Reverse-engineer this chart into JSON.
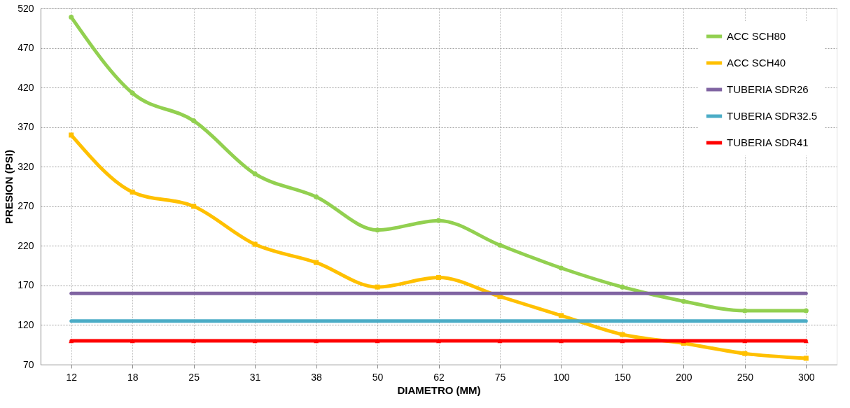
{
  "chart_data": {
    "type": "line",
    "xlabel": "DIAMETRO (MM)",
    "ylabel": "PRESION (PSI)",
    "categories": [
      "12",
      "18",
      "25",
      "31",
      "38",
      "50",
      "62",
      "75",
      "100",
      "150",
      "200",
      "250",
      "300"
    ],
    "ylim": [
      70,
      520
    ],
    "yticks": [
      70,
      120,
      170,
      220,
      270,
      320,
      370,
      420,
      470,
      520
    ],
    "grid": true,
    "legend": "top right",
    "series": [
      {
        "name": "ACC SCH80",
        "color": "#92d050",
        "marker": "circle",
        "values": [
          509,
          413,
          378,
          311,
          282,
          240,
          252,
          221,
          192,
          168,
          150,
          138,
          138
        ]
      },
      {
        "name": "ACC SCH40",
        "color": "#ffc000",
        "marker": "square",
        "values": [
          360,
          288,
          270,
          222,
          199,
          168,
          180,
          156,
          132,
          108,
          97,
          84,
          78
        ]
      },
      {
        "name": "TUBERIA SDR26",
        "color": "#8064a2",
        "marker": "none",
        "values": [
          160,
          160,
          160,
          160,
          160,
          160,
          160,
          160,
          160,
          160,
          160,
          160,
          160
        ]
      },
      {
        "name": "TUBERIA SDR32.5",
        "color": "#4bacc6",
        "marker": "none",
        "values": [
          125,
          125,
          125,
          125,
          125,
          125,
          125,
          125,
          125,
          125,
          125,
          125,
          125
        ]
      },
      {
        "name": "TUBERIA SDR41",
        "color": "#ff0000",
        "marker": "triangle",
        "values": [
          100,
          100,
          100,
          100,
          100,
          100,
          100,
          100,
          100,
          100,
          100,
          100,
          100
        ]
      }
    ]
  }
}
